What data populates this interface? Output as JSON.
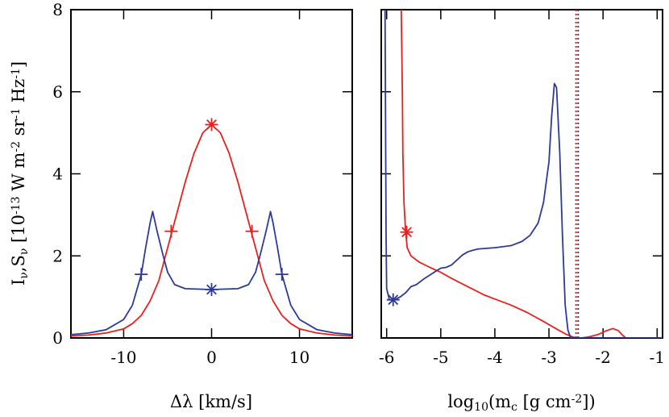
{
  "chart_data": [
    {
      "type": "line",
      "xlabel": "Δλ [km/s]",
      "ylabel_parts": [
        "I",
        "ν",
        ",S",
        "ν",
        " [10",
        "-13",
        " W m",
        "-2",
        " sr",
        "-1",
        " Hz",
        "-1",
        "]"
      ],
      "xlim": [
        -16,
        16
      ],
      "ylim": [
        0,
        8
      ],
      "xticks": [
        -10,
        0,
        10
      ],
      "xtick_labels": [
        "-10",
        "0",
        "10"
      ],
      "yticks": [
        0,
        2,
        4,
        6,
        8
      ],
      "ytick_labels": [
        "0",
        "2",
        "4",
        "6",
        "8"
      ],
      "colors": {
        "red": "#e8211f",
        "blue": "#2b3a9b"
      },
      "series": [
        {
          "color": "#e8211f",
          "points": [
            [
              -16,
              0.05
            ],
            [
              -14,
              0.07
            ],
            [
              -12,
              0.12
            ],
            [
              -10,
              0.22
            ],
            [
              -9,
              0.35
            ],
            [
              -8,
              0.55
            ],
            [
              -7,
              0.9
            ],
            [
              -6,
              1.4
            ],
            [
              -5,
              2.2
            ],
            [
              -4,
              3.0
            ],
            [
              -3,
              3.8
            ],
            [
              -2,
              4.5
            ],
            [
              -1,
              5.0
            ],
            [
              0,
              5.2
            ],
            [
              1,
              5.0
            ],
            [
              2,
              4.5
            ],
            [
              3,
              3.8
            ],
            [
              4,
              3.0
            ],
            [
              5,
              2.2
            ],
            [
              6,
              1.4
            ],
            [
              7,
              0.9
            ],
            [
              8,
              0.55
            ],
            [
              9,
              0.35
            ],
            [
              10,
              0.22
            ],
            [
              12,
              0.12
            ],
            [
              14,
              0.07
            ],
            [
              16,
              0.05
            ]
          ]
        },
        {
          "color": "#2b3a9b",
          "points": [
            [
              -16,
              0.08
            ],
            [
              -14,
              0.12
            ],
            [
              -12,
              0.2
            ],
            [
              -10,
              0.45
            ],
            [
              -9,
              0.8
            ],
            [
              -8,
              1.55
            ],
            [
              -7.5,
              2.2
            ],
            [
              -7,
              2.8
            ],
            [
              -6.7,
              3.08
            ],
            [
              -6.2,
              2.6
            ],
            [
              -5.5,
              2.0
            ],
            [
              -5,
              1.6
            ],
            [
              -4.2,
              1.3
            ],
            [
              -3,
              1.2
            ],
            [
              0,
              1.18
            ],
            [
              3,
              1.2
            ],
            [
              4.2,
              1.3
            ],
            [
              5,
              1.6
            ],
            [
              5.5,
              2.0
            ],
            [
              6.2,
              2.6
            ],
            [
              6.7,
              3.08
            ],
            [
              7,
              2.8
            ],
            [
              7.5,
              2.2
            ],
            [
              8,
              1.55
            ],
            [
              9,
              0.8
            ],
            [
              10,
              0.45
            ],
            [
              12,
              0.2
            ],
            [
              14,
              0.12
            ],
            [
              16,
              0.08
            ]
          ]
        }
      ],
      "markers": [
        {
          "shape": "asterisk",
          "x": 0,
          "y": 5.2,
          "color": "#e8211f"
        },
        {
          "shape": "plus",
          "x": -4.6,
          "y": 2.6,
          "color": "#e8211f"
        },
        {
          "shape": "plus",
          "x": 4.6,
          "y": 2.6,
          "color": "#e8211f"
        },
        {
          "shape": "asterisk",
          "x": 0,
          "y": 1.18,
          "color": "#2b3a9b"
        },
        {
          "shape": "plus",
          "x": -8.0,
          "y": 1.55,
          "color": "#2b3a9b"
        },
        {
          "shape": "plus",
          "x": 8.0,
          "y": 1.55,
          "color": "#2b3a9b"
        }
      ]
    },
    {
      "type": "line",
      "xlabel_parts": [
        "log",
        "10",
        "(m",
        "c",
        " [g cm",
        "-2",
        "])"
      ],
      "xlim": [
        -6.1,
        -0.9
      ],
      "ylim": [
        0,
        8
      ],
      "xticks": [
        -6,
        -5,
        -4,
        -3,
        -2,
        -1
      ],
      "xtick_labels": [
        "-6",
        "-5",
        "-4",
        "-3",
        "-2",
        "-1"
      ],
      "yticks": [
        0,
        2,
        4,
        6,
        8
      ],
      "series": [
        {
          "color": "#e8211f",
          "points": [
            [
              -5.73,
              8.0
            ],
            [
              -5.71,
              6.0
            ],
            [
              -5.7,
              4.5
            ],
            [
              -5.68,
              3.3
            ],
            [
              -5.65,
              2.6
            ],
            [
              -5.62,
              2.2
            ],
            [
              -5.55,
              2.0
            ],
            [
              -5.4,
              1.85
            ],
            [
              -5.2,
              1.72
            ],
            [
              -5.0,
              1.6
            ],
            [
              -4.8,
              1.45
            ],
            [
              -4.5,
              1.25
            ],
            [
              -4.2,
              1.05
            ],
            [
              -4.0,
              0.95
            ],
            [
              -3.7,
              0.8
            ],
            [
              -3.4,
              0.62
            ],
            [
              -3.1,
              0.4
            ],
            [
              -2.9,
              0.25
            ],
            [
              -2.7,
              0.1
            ],
            [
              -2.55,
              0.02
            ],
            [
              -2.4,
              0.0
            ],
            [
              -2.25,
              0.03
            ],
            [
              -2.1,
              0.08
            ],
            [
              -1.95,
              0.17
            ],
            [
              -1.82,
              0.23
            ],
            [
              -1.72,
              0.18
            ],
            [
              -1.65,
              0.08
            ],
            [
              -1.58,
              0.0
            ],
            [
              -0.9,
              0.0
            ]
          ]
        },
        {
          "color": "#2b3a9b",
          "points": [
            [
              -6.03,
              8.0
            ],
            [
              -6.02,
              5.0
            ],
            [
              -6.01,
              2.5
            ],
            [
              -6.0,
              1.2
            ],
            [
              -5.95,
              0.93
            ],
            [
              -5.85,
              0.93
            ],
            [
              -5.75,
              1.0
            ],
            [
              -5.65,
              1.1
            ],
            [
              -5.55,
              1.25
            ],
            [
              -5.45,
              1.3
            ],
            [
              -5.3,
              1.45
            ],
            [
              -5.1,
              1.62
            ],
            [
              -5.0,
              1.7
            ],
            [
              -4.9,
              1.72
            ],
            [
              -4.8,
              1.78
            ],
            [
              -4.7,
              1.9
            ],
            [
              -4.6,
              2.02
            ],
            [
              -4.5,
              2.1
            ],
            [
              -4.4,
              2.14
            ],
            [
              -4.3,
              2.17
            ],
            [
              -4.0,
              2.2
            ],
            [
              -3.7,
              2.25
            ],
            [
              -3.5,
              2.35
            ],
            [
              -3.35,
              2.5
            ],
            [
              -3.2,
              2.8
            ],
            [
              -3.1,
              3.3
            ],
            [
              -3.0,
              4.3
            ],
            [
              -2.95,
              5.4
            ],
            [
              -2.9,
              6.2
            ],
            [
              -2.86,
              6.1
            ],
            [
              -2.8,
              4.5
            ],
            [
              -2.75,
              2.5
            ],
            [
              -2.7,
              0.8
            ],
            [
              -2.65,
              0.2
            ],
            [
              -2.6,
              0.0
            ],
            [
              -0.9,
              0.0
            ]
          ]
        }
      ],
      "markers": [
        {
          "shape": "asterisk",
          "x": -5.63,
          "y": 2.58,
          "color": "#e8211f"
        },
        {
          "shape": "asterisk",
          "x": -5.88,
          "y": 0.93,
          "color": "#2b3a9b"
        }
      ],
      "vlines": [
        {
          "x": -2.5,
          "color": "#e8211f",
          "style": "dotted"
        },
        {
          "x": -2.46,
          "color": "#2b3a9b",
          "style": "dotted"
        }
      ]
    }
  ]
}
